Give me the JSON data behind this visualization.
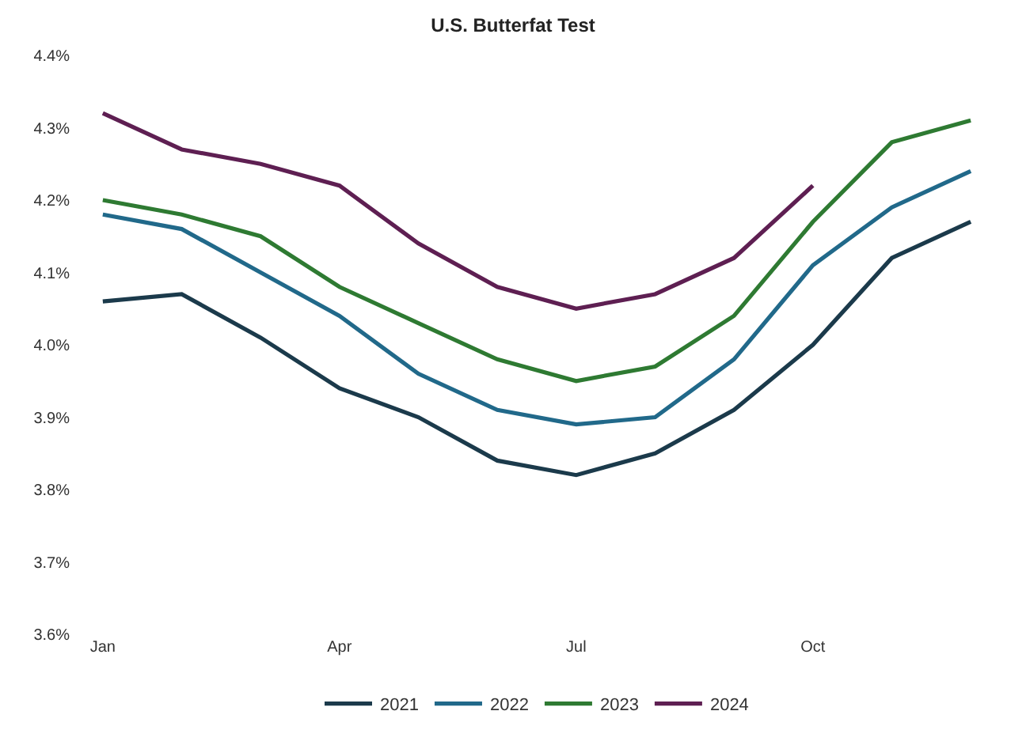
{
  "chart_data": {
    "type": "line",
    "title": "U.S. Butterfat Test",
    "categories": [
      "Jan",
      null,
      null,
      "Apr",
      null,
      null,
      "Jul",
      null,
      null,
      "Oct",
      null,
      null
    ],
    "series": [
      {
        "name": "2021",
        "color": "#1b3a4b",
        "values": [
          4.06,
          4.07,
          4.01,
          3.94,
          3.9,
          3.84,
          3.82,
          3.85,
          3.91,
          4.0,
          4.12,
          4.17
        ]
      },
      {
        "name": "2022",
        "color": "#21698a",
        "values": [
          4.18,
          4.16,
          4.1,
          4.04,
          3.96,
          3.91,
          3.89,
          3.9,
          3.98,
          4.11,
          4.19,
          4.24
        ]
      },
      {
        "name": "2023",
        "color": "#2e7a32",
        "values": [
          4.2,
          4.18,
          4.15,
          4.08,
          4.03,
          3.98,
          3.95,
          3.97,
          4.04,
          4.17,
          4.28,
          4.31
        ]
      },
      {
        "name": "2024",
        "color": "#5e1f52",
        "values": [
          4.32,
          4.27,
          4.25,
          4.22,
          4.14,
          4.08,
          4.05,
          4.07,
          4.12,
          4.22,
          null,
          null
        ]
      }
    ],
    "ylim": [
      3.6,
      4.4
    ],
    "yticks": [
      {
        "value": 3.6,
        "label": "3.6%"
      },
      {
        "value": 3.7,
        "label": "3.7%"
      },
      {
        "value": 3.8,
        "label": "3.8%"
      },
      {
        "value": 3.9,
        "label": "3.9%"
      },
      {
        "value": 4.0,
        "label": "4.0%"
      },
      {
        "value": 4.1,
        "label": "4.1%"
      },
      {
        "value": 4.2,
        "label": "4.2%"
      },
      {
        "value": 4.3,
        "label": "4.3%"
      },
      {
        "value": 4.4,
        "label": "4.4%"
      }
    ],
    "legend": "bottom",
    "marker": "none",
    "line_style": "solid"
  }
}
